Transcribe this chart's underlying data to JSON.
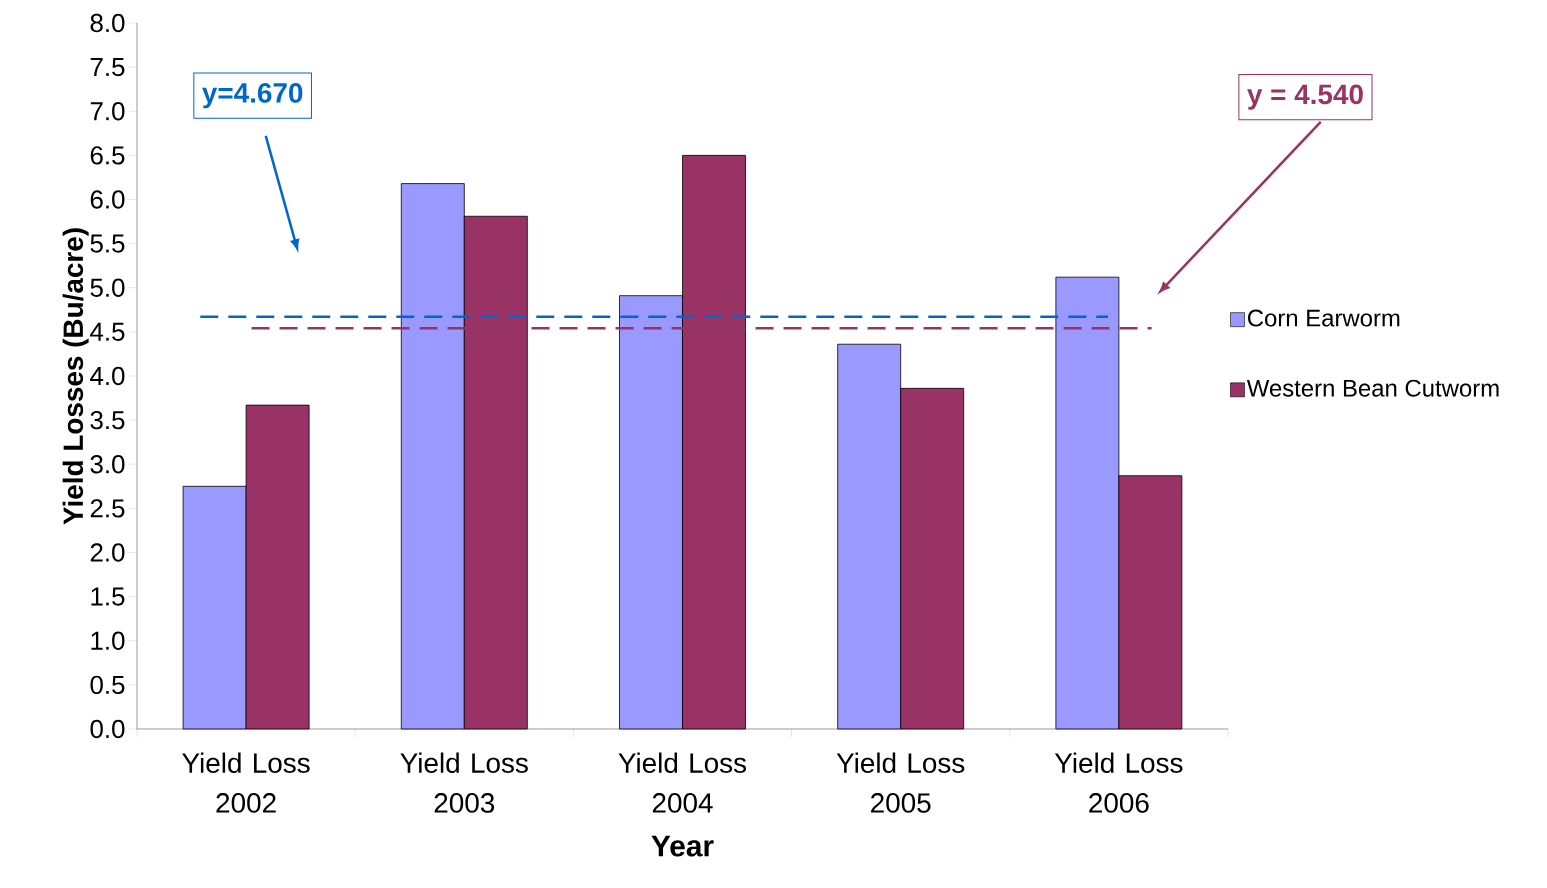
{
  "chart_data": {
    "type": "bar",
    "categories": [
      "Yield Loss 2002",
      "Yield Loss 2003",
      "Yield Loss 2004",
      "Yield Loss 2005",
      "Yield Loss 2006"
    ],
    "series": [
      {
        "name": "Corn Earworm",
        "color": "#9999ff",
        "values": [
          2.75,
          6.18,
          4.91,
          4.36,
          5.12
        ]
      },
      {
        "name": "Western Bean Cutworm",
        "color": "#993366",
        "values": [
          3.67,
          5.81,
          6.5,
          3.86,
          2.87
        ]
      }
    ],
    "xlabel": "Year",
    "ylabel": "Yield Losses (Bu/acre)",
    "ylim": [
      0,
      8
    ],
    "yticks": [
      {
        "value": 0,
        "label": "0.0"
      },
      {
        "value": 0.5,
        "label": "0.5"
      },
      {
        "value": 1,
        "label": "1.0"
      },
      {
        "value": 1.5,
        "label": "1.5"
      },
      {
        "value": 2,
        "label": "2.0"
      },
      {
        "value": 2.5,
        "label": "2.5"
      },
      {
        "value": 3,
        "label": "3.0"
      },
      {
        "value": 3.5,
        "label": "3.5"
      },
      {
        "value": 4,
        "label": "4.0"
      },
      {
        "value": 4.5,
        "label": "4.5"
      },
      {
        "value": 5,
        "label": "5.0"
      },
      {
        "value": 5.5,
        "label": "5.5"
      },
      {
        "value": 6,
        "label": "6.0"
      },
      {
        "value": 6.5,
        "label": "6.5"
      },
      {
        "value": 7,
        "label": "7.0"
      },
      {
        "value": 7.5,
        "label": "7.5"
      },
      {
        "value": 8,
        "label": "8.0"
      }
    ],
    "ref_lines": [
      {
        "axis": "y",
        "value": 4.67,
        "label": "y=4.670",
        "color": "#0066cc",
        "line_style": "dashed"
      },
      {
        "axis": "y",
        "value": 4.54,
        "label": "y = 4.540",
        "color": "#993366",
        "line_style": "dashed"
      }
    ],
    "grid": false,
    "legend": "right"
  }
}
